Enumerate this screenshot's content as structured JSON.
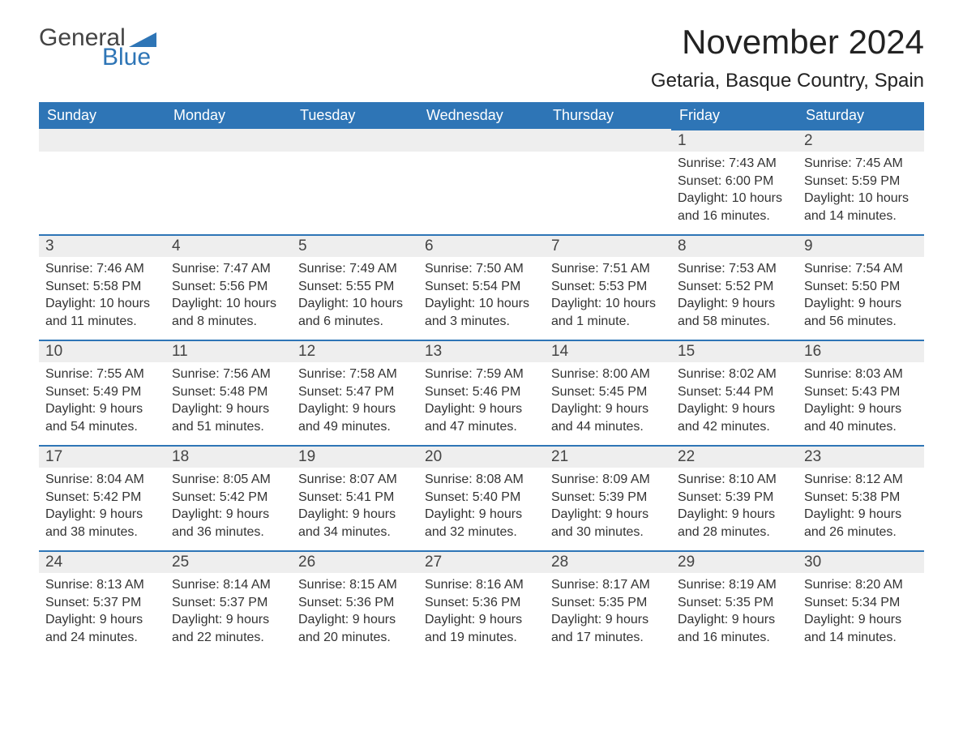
{
  "logo": {
    "general": "General",
    "blue": "Blue"
  },
  "title": "November 2024",
  "location": "Getaria, Basque Country, Spain",
  "colors": {
    "header_bg": "#2e75b6",
    "header_text": "#ffffff",
    "day_header_bg": "#eeeeee",
    "day_border_top": "#2e75b6",
    "body_bg": "#ffffff",
    "text": "#333333",
    "logo_blue": "#2e75b6",
    "logo_gray": "#444444"
  },
  "weekdays": [
    "Sunday",
    "Monday",
    "Tuesday",
    "Wednesday",
    "Thursday",
    "Friday",
    "Saturday"
  ],
  "weeks": [
    [
      null,
      null,
      null,
      null,
      null,
      {
        "day": "1",
        "sunrise": "7:43 AM",
        "sunset": "6:00 PM",
        "daylight": "10 hours and 16 minutes."
      },
      {
        "day": "2",
        "sunrise": "7:45 AM",
        "sunset": "5:59 PM",
        "daylight": "10 hours and 14 minutes."
      }
    ],
    [
      {
        "day": "3",
        "sunrise": "7:46 AM",
        "sunset": "5:58 PM",
        "daylight": "10 hours and 11 minutes."
      },
      {
        "day": "4",
        "sunrise": "7:47 AM",
        "sunset": "5:56 PM",
        "daylight": "10 hours and 8 minutes."
      },
      {
        "day": "5",
        "sunrise": "7:49 AM",
        "sunset": "5:55 PM",
        "daylight": "10 hours and 6 minutes."
      },
      {
        "day": "6",
        "sunrise": "7:50 AM",
        "sunset": "5:54 PM",
        "daylight": "10 hours and 3 minutes."
      },
      {
        "day": "7",
        "sunrise": "7:51 AM",
        "sunset": "5:53 PM",
        "daylight": "10 hours and 1 minute."
      },
      {
        "day": "8",
        "sunrise": "7:53 AM",
        "sunset": "5:52 PM",
        "daylight": "9 hours and 58 minutes."
      },
      {
        "day": "9",
        "sunrise": "7:54 AM",
        "sunset": "5:50 PM",
        "daylight": "9 hours and 56 minutes."
      }
    ],
    [
      {
        "day": "10",
        "sunrise": "7:55 AM",
        "sunset": "5:49 PM",
        "daylight": "9 hours and 54 minutes."
      },
      {
        "day": "11",
        "sunrise": "7:56 AM",
        "sunset": "5:48 PM",
        "daylight": "9 hours and 51 minutes."
      },
      {
        "day": "12",
        "sunrise": "7:58 AM",
        "sunset": "5:47 PM",
        "daylight": "9 hours and 49 minutes."
      },
      {
        "day": "13",
        "sunrise": "7:59 AM",
        "sunset": "5:46 PM",
        "daylight": "9 hours and 47 minutes."
      },
      {
        "day": "14",
        "sunrise": "8:00 AM",
        "sunset": "5:45 PM",
        "daylight": "9 hours and 44 minutes."
      },
      {
        "day": "15",
        "sunrise": "8:02 AM",
        "sunset": "5:44 PM",
        "daylight": "9 hours and 42 minutes."
      },
      {
        "day": "16",
        "sunrise": "8:03 AM",
        "sunset": "5:43 PM",
        "daylight": "9 hours and 40 minutes."
      }
    ],
    [
      {
        "day": "17",
        "sunrise": "8:04 AM",
        "sunset": "5:42 PM",
        "daylight": "9 hours and 38 minutes."
      },
      {
        "day": "18",
        "sunrise": "8:05 AM",
        "sunset": "5:42 PM",
        "daylight": "9 hours and 36 minutes."
      },
      {
        "day": "19",
        "sunrise": "8:07 AM",
        "sunset": "5:41 PM",
        "daylight": "9 hours and 34 minutes."
      },
      {
        "day": "20",
        "sunrise": "8:08 AM",
        "sunset": "5:40 PM",
        "daylight": "9 hours and 32 minutes."
      },
      {
        "day": "21",
        "sunrise": "8:09 AM",
        "sunset": "5:39 PM",
        "daylight": "9 hours and 30 minutes."
      },
      {
        "day": "22",
        "sunrise": "8:10 AM",
        "sunset": "5:39 PM",
        "daylight": "9 hours and 28 minutes."
      },
      {
        "day": "23",
        "sunrise": "8:12 AM",
        "sunset": "5:38 PM",
        "daylight": "9 hours and 26 minutes."
      }
    ],
    [
      {
        "day": "24",
        "sunrise": "8:13 AM",
        "sunset": "5:37 PM",
        "daylight": "9 hours and 24 minutes."
      },
      {
        "day": "25",
        "sunrise": "8:14 AM",
        "sunset": "5:37 PM",
        "daylight": "9 hours and 22 minutes."
      },
      {
        "day": "26",
        "sunrise": "8:15 AM",
        "sunset": "5:36 PM",
        "daylight": "9 hours and 20 minutes."
      },
      {
        "day": "27",
        "sunrise": "8:16 AM",
        "sunset": "5:36 PM",
        "daylight": "9 hours and 19 minutes."
      },
      {
        "day": "28",
        "sunrise": "8:17 AM",
        "sunset": "5:35 PM",
        "daylight": "9 hours and 17 minutes."
      },
      {
        "day": "29",
        "sunrise": "8:19 AM",
        "sunset": "5:35 PM",
        "daylight": "9 hours and 16 minutes."
      },
      {
        "day": "30",
        "sunrise": "8:20 AM",
        "sunset": "5:34 PM",
        "daylight": "9 hours and 14 minutes."
      }
    ]
  ],
  "labels": {
    "sunrise": "Sunrise: ",
    "sunset": "Sunset: ",
    "daylight": "Daylight: "
  }
}
